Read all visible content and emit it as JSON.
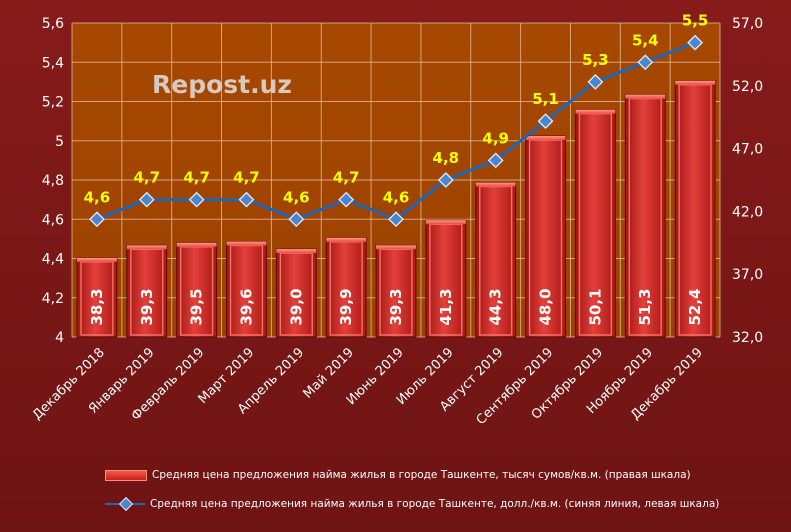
{
  "watermark": "Repost.uz",
  "colors": {
    "plot_bg": "#a84a00",
    "bar": "#d42a24",
    "line": "#1e66b8",
    "point_label": "#ffff00",
    "background": "#7a1716"
  },
  "chart_data": {
    "type": "bar+line",
    "categories": [
      "Декабрь 2018",
      "Январь 2019",
      "Февраль 2019",
      "Март 2019",
      "Апрель 2019",
      "Май 2019",
      "Июнь 2019",
      "Июль 2019",
      "Август 2019",
      "Сентябрь 2019",
      "Октябрь 2019",
      "Ноябрь 2019",
      "Декабрь 2019"
    ],
    "series": [
      {
        "name": "Средняя цена предложения найма жилья в городе Ташкенте, тысяч сумов/кв.м. (правая шкала)",
        "type": "bar",
        "axis": "right",
        "values": [
          38.3,
          39.3,
          39.5,
          39.6,
          39.0,
          39.9,
          39.3,
          41.3,
          44.3,
          48.0,
          50.1,
          51.3,
          52.4
        ],
        "labels": [
          "38,3",
          "39,3",
          "39,5",
          "39,6",
          "39,0",
          "39,9",
          "39,3",
          "41,3",
          "44,3",
          "48,0",
          "50,1",
          "51,3",
          "52,4"
        ]
      },
      {
        "name": "Средняя цена предложения найма жилья в городе Ташкенте, долл./кв.м. (синяя линия, левая шкала)",
        "type": "line",
        "axis": "left",
        "values": [
          4.6,
          4.7,
          4.7,
          4.7,
          4.6,
          4.7,
          4.6,
          4.8,
          4.9,
          5.1,
          5.3,
          5.4,
          5.5
        ],
        "labels": [
          "4,6",
          "4,7",
          "4,7",
          "4,7",
          "4,6",
          "4,7",
          "4,6",
          "4,8",
          "4,9",
          "5,1",
          "5,3",
          "5,4",
          "5,5"
        ]
      }
    ],
    "left_axis": {
      "ylim": [
        4,
        5.6
      ],
      "ticks": [
        4,
        4.2,
        4.4,
        4.6,
        4.8,
        5,
        5.2,
        5.4,
        5.6
      ],
      "tick_labels": [
        "4",
        "4,2",
        "4,4",
        "4,6",
        "4,8",
        "5",
        "5,2",
        "5,4",
        "5,6"
      ]
    },
    "right_axis": {
      "ylim": [
        32,
        57
      ],
      "ticks": [
        32,
        37,
        42,
        47,
        52,
        57
      ],
      "tick_labels": [
        "32,0",
        "37,0",
        "42,0",
        "47,0",
        "52,0",
        "57,0"
      ]
    },
    "grid": true,
    "legend": "bottom"
  }
}
